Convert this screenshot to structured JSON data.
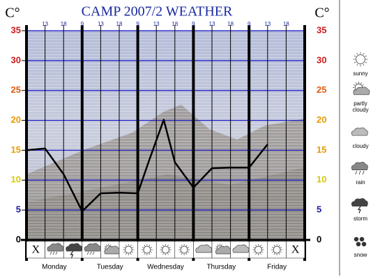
{
  "chart_data": {
    "type": "line",
    "title": "CAMP 2007/2 WEATHER",
    "y_axis_label": "C°",
    "y2_axis_label": "C°",
    "x": [
      0,
      1,
      2,
      3,
      4,
      5,
      6,
      6.6,
      7.4,
      8,
      9,
      10,
      11,
      12,
      13
    ],
    "series": [
      {
        "values": [
          15,
          15.3,
          11,
          4.8,
          7.8,
          7.9,
          7.8,
          13.2,
          20.1,
          13,
          8.75,
          12,
          12.1,
          12.1,
          16
        ],
        "color": "#000000"
      }
    ],
    "xlim": [
      0,
      15
    ],
    "xticks": [
      {
        "value": 1,
        "label": "13"
      },
      {
        "value": 2,
        "label": "18"
      },
      {
        "value": 3,
        "label": "9"
      },
      {
        "value": 4,
        "label": "13"
      },
      {
        "value": 5,
        "label": "18"
      },
      {
        "value": 6,
        "label": "9"
      },
      {
        "value": 7,
        "label": "13"
      },
      {
        "value": 8,
        "label": "18"
      },
      {
        "value": 9,
        "label": "9"
      },
      {
        "value": 10,
        "label": "13"
      },
      {
        "value": 11,
        "label": "18"
      },
      {
        "value": 12,
        "label": "9"
      },
      {
        "value": 13,
        "label": "13"
      },
      {
        "value": 14,
        "label": "18"
      }
    ],
    "ylim": [
      0,
      35
    ],
    "yticks": [
      0,
      5,
      10,
      15,
      20,
      25,
      30,
      35
    ],
    "ytick_colors": [
      "#000000",
      "#1a1aa0",
      "#d8c800",
      "#e89a00",
      "#e89a00",
      "#e05a10",
      "#cc1a1a",
      "#cc1a1a"
    ],
    "grid": true,
    "grid_color": "#1a1acc",
    "days": [
      "Monday",
      "Tuesday",
      "Wednesday",
      "Thursday",
      "Friday"
    ],
    "end_marks": [
      "X",
      "X"
    ],
    "legend": [
      "sunny",
      "partly cloudy",
      "cloudy",
      "rain",
      "storm",
      "snow"
    ]
  }
}
